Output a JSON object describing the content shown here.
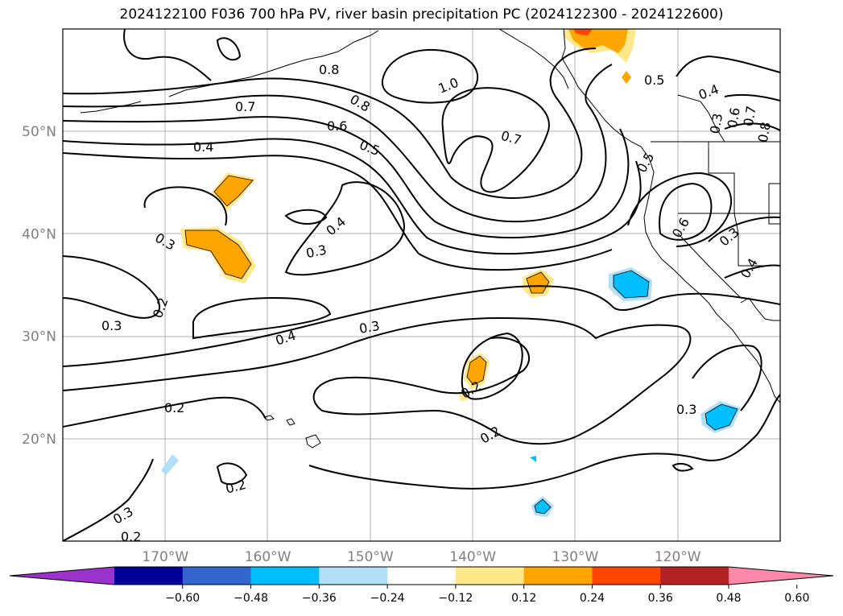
{
  "title": "2024122100 F036 700 hPa PV, river basin precipitation PC (2024122300 - 2024122600)",
  "map": {
    "lat_labels": [
      {
        "lat": 50,
        "text": "50°N"
      },
      {
        "lat": 40,
        "text": "40°N"
      },
      {
        "lat": 30,
        "text": "30°N"
      },
      {
        "lat": 20,
        "text": "20°N"
      }
    ],
    "lon_labels": [
      {
        "lon": -170,
        "text": "170°W"
      },
      {
        "lon": -160,
        "text": "160°W"
      },
      {
        "lon": -150,
        "text": "150°W"
      },
      {
        "lon": -140,
        "text": "140°W"
      },
      {
        "lon": -130,
        "text": "130°W"
      },
      {
        "lon": -120,
        "text": "120°W"
      }
    ],
    "extent": {
      "lon_min": -180,
      "lon_max": -110,
      "lat_min": 10,
      "lat_max": 60
    },
    "contour_labels": [
      "0.8",
      "1.0",
      "0.7",
      "0.8",
      "0.6",
      "0.5",
      "0.4",
      "0.7",
      "0.5",
      "0.4",
      "0.3",
      "0.6",
      "0.7",
      "0.8",
      "0.5",
      "0.6",
      "0.3",
      "0.4",
      "0.3",
      "0.4",
      "0.3",
      "0.2",
      "0.3",
      "0.4",
      "0.3",
      "0.2",
      "0.2",
      "0.2",
      "0.3",
      "0.2",
      "0.3",
      "0.2"
    ]
  },
  "colorbar": {
    "ticks": [
      "−0.60",
      "−0.48",
      "−0.36",
      "−0.24",
      "−0.12",
      "0.12",
      "0.24",
      "0.36",
      "0.48",
      "0.60"
    ],
    "colors": [
      "#9933cc",
      "#000099",
      "#3366cc",
      "#00bfff",
      "#b0e0f8",
      "#ffffff",
      "#ffe88a",
      "#ffa500",
      "#ff4500",
      "#b22222",
      "#ff88aa"
    ]
  }
}
